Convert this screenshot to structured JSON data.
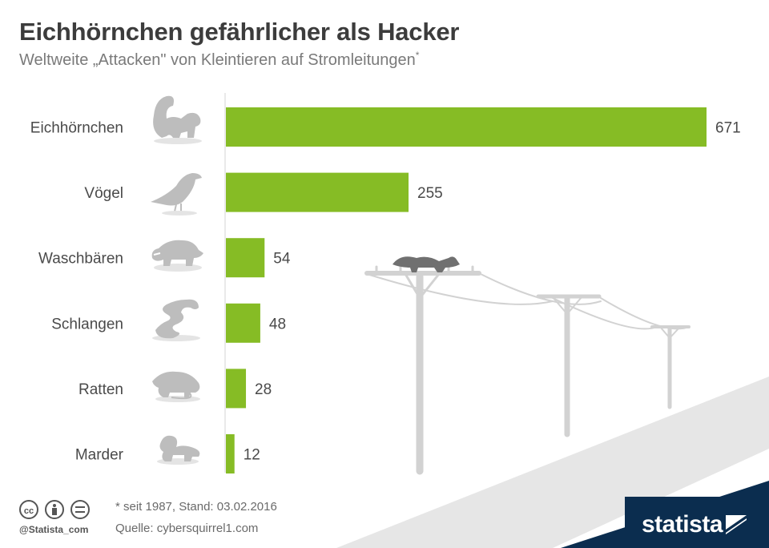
{
  "title": "Eichhörnchen gefährlicher als Hacker",
  "subtitle": "Weltweite „Attacken\" von Kleintieren auf Stromleitungen",
  "subtitle_marker": "*",
  "footnote": "* seit 1987,  Stand: 03.02.2016",
  "source": "Quelle: cybersquirrel1.com",
  "handle": "@Statista_com",
  "brand": "statista",
  "colors": {
    "bar": "#86bc25",
    "icon": "#bdbdbd",
    "background_shape": "#e6e6e6",
    "footer_band": "#0b2d4f"
  },
  "icons": [
    "squirrel-icon",
    "bird-icon",
    "raccoon-icon",
    "snake-icon",
    "rat-icon",
    "marten-icon"
  ],
  "chart_data": {
    "type": "bar",
    "orientation": "horizontal",
    "categories": [
      "Eichhörnchen",
      "Vögel",
      "Waschbären",
      "Schlangen",
      "Ratten",
      "Marder"
    ],
    "values": [
      671,
      255,
      54,
      48,
      28,
      12
    ],
    "data_labels": [
      "671",
      "255",
      "54",
      "48",
      "28",
      "12"
    ],
    "xlim": [
      0,
      671
    ],
    "grid": false,
    "legend": "none"
  }
}
